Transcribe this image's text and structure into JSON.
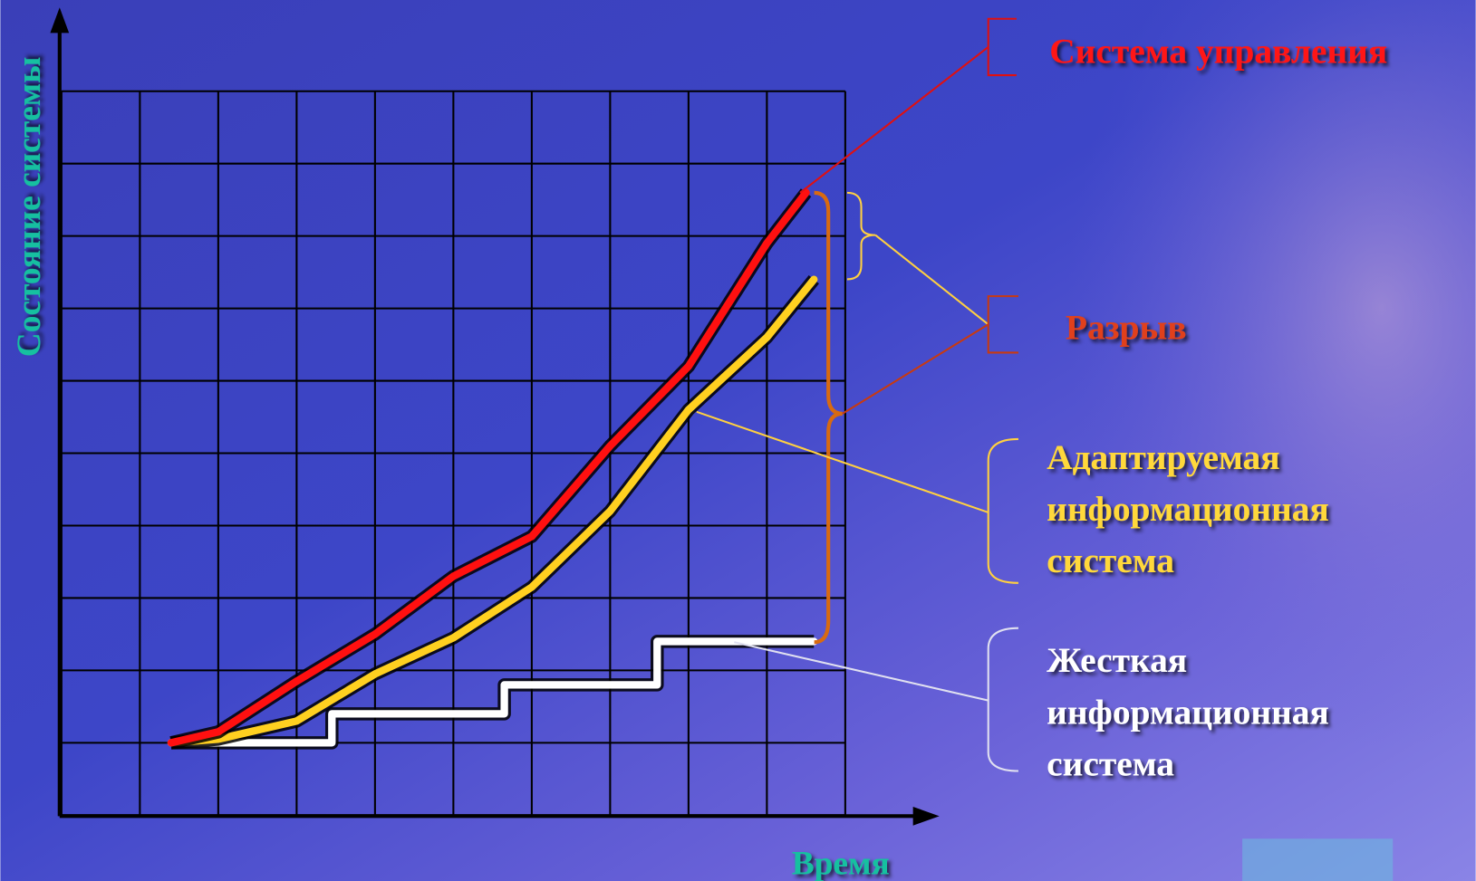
{
  "chart_data": {
    "type": "line",
    "y_label": "Состояние системы",
    "x_label": "Время",
    "xlim": [
      0,
      10
    ],
    "ylim": [
      0,
      10
    ],
    "xticks": [
      0,
      1,
      2,
      3,
      4,
      5,
      6,
      7,
      8,
      9,
      10
    ],
    "yticks": [
      0,
      1,
      2,
      3,
      4,
      5,
      6,
      7,
      8,
      9,
      10
    ],
    "grid": true,
    "tick_labels": false,
    "series": [
      {
        "name": "Система управления",
        "color": "#ff1010",
        "x": [
          1.4,
          2,
          3,
          4,
          5,
          6,
          7,
          8,
          9,
          9.5
        ],
        "values": [
          1.0,
          1.15,
          1.85,
          2.5,
          3.3,
          3.85,
          5.1,
          6.2,
          7.9,
          8.6
        ]
      },
      {
        "name": "Адаптируемая информационная система",
        "color": "#ffd020",
        "x": [
          1.4,
          2,
          3,
          4,
          5,
          6,
          7,
          8,
          9,
          9.6
        ],
        "values": [
          1.0,
          1.05,
          1.3,
          1.95,
          2.45,
          3.15,
          4.2,
          5.6,
          6.6,
          7.4
        ]
      },
      {
        "name": "Жесткая информационная система",
        "color": "#ffffff",
        "x": [
          1.4,
          3.45,
          3.45,
          5.65,
          5.65,
          7.6,
          7.6,
          9.6
        ],
        "values": [
          1,
          1,
          1.4,
          1.4,
          1.8,
          1.8,
          2.4,
          2.4
        ]
      }
    ],
    "annotations": [
      {
        "lines": [
          "Система управления"
        ],
        "color": "#ff1818"
      },
      {
        "lines": [
          "Разрыв"
        ],
        "color": "#e0401a"
      },
      {
        "lines": [
          "Адаптируемая",
          "информационная",
          "система"
        ],
        "color": "#ffd83a"
      },
      {
        "lines": [
          "Жесткая",
          "информационная",
          "система"
        ],
        "color": "#ffffff"
      }
    ]
  }
}
